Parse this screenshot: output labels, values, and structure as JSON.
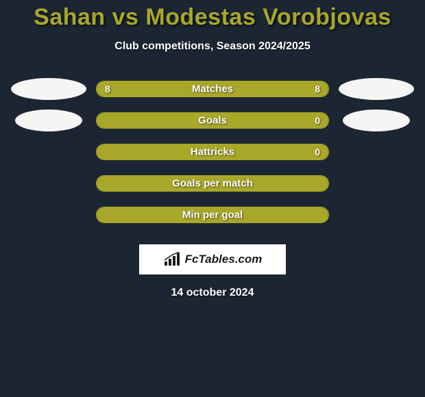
{
  "title": "Sahan vs Modestas Vorobjovas",
  "subtitle": "Club competitions, Season 2024/2025",
  "background_color": "#1c2632",
  "accent_color": "#a9a729",
  "text_color": "#ffffff",
  "ellipse_color": "#f5f5f4",
  "logo_bg": "#ffffff",
  "logo_text_color": "#1a1a1a",
  "stats": [
    {
      "label": "Matches",
      "left_value": "8",
      "right_value": "8",
      "left_pct": 50,
      "right_pct": 50,
      "show_left_ellipse": true,
      "show_right_ellipse": true
    },
    {
      "label": "Goals",
      "left_value": "",
      "right_value": "0",
      "left_pct": 100,
      "right_pct": 0,
      "show_left_ellipse": true,
      "show_right_ellipse": true
    },
    {
      "label": "Hattricks",
      "left_value": "",
      "right_value": "0",
      "left_pct": 100,
      "right_pct": 0,
      "show_left_ellipse": false,
      "show_right_ellipse": false
    },
    {
      "label": "Goals per match",
      "left_value": "",
      "right_value": "",
      "left_pct": 100,
      "right_pct": 0,
      "show_left_ellipse": false,
      "show_right_ellipse": false
    },
    {
      "label": "Min per goal",
      "left_value": "",
      "right_value": "",
      "left_pct": 100,
      "right_pct": 0,
      "show_left_ellipse": false,
      "show_right_ellipse": false
    }
  ],
  "logo_text": "FcTables.com",
  "date": "14 october 2024"
}
